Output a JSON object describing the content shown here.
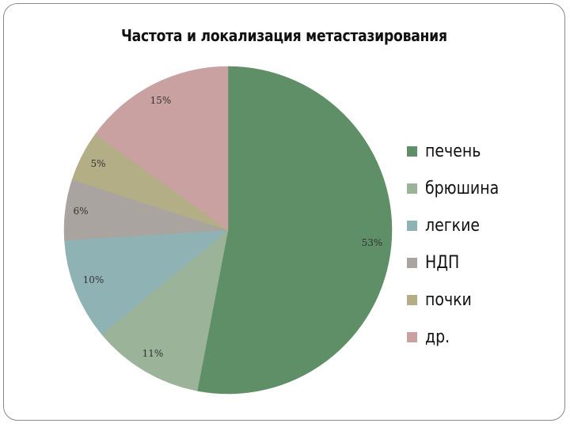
{
  "chart_data": {
    "type": "pie",
    "title": "Частота и локализация метастазирования",
    "categories": [
      "печень",
      "брюшина",
      "легкие",
      "НДП",
      "почки",
      "др."
    ],
    "values": [
      53,
      11,
      10,
      6,
      5,
      15
    ],
    "labels": [
      "53%",
      "11%",
      "10%",
      "6%",
      "5%",
      "15%"
    ],
    "colors": [
      "#5f8f66",
      "#9ab399",
      "#8fb2b5",
      "#a9a49f",
      "#b4ae86",
      "#c9a1a0"
    ],
    "legend_position": "right"
  }
}
